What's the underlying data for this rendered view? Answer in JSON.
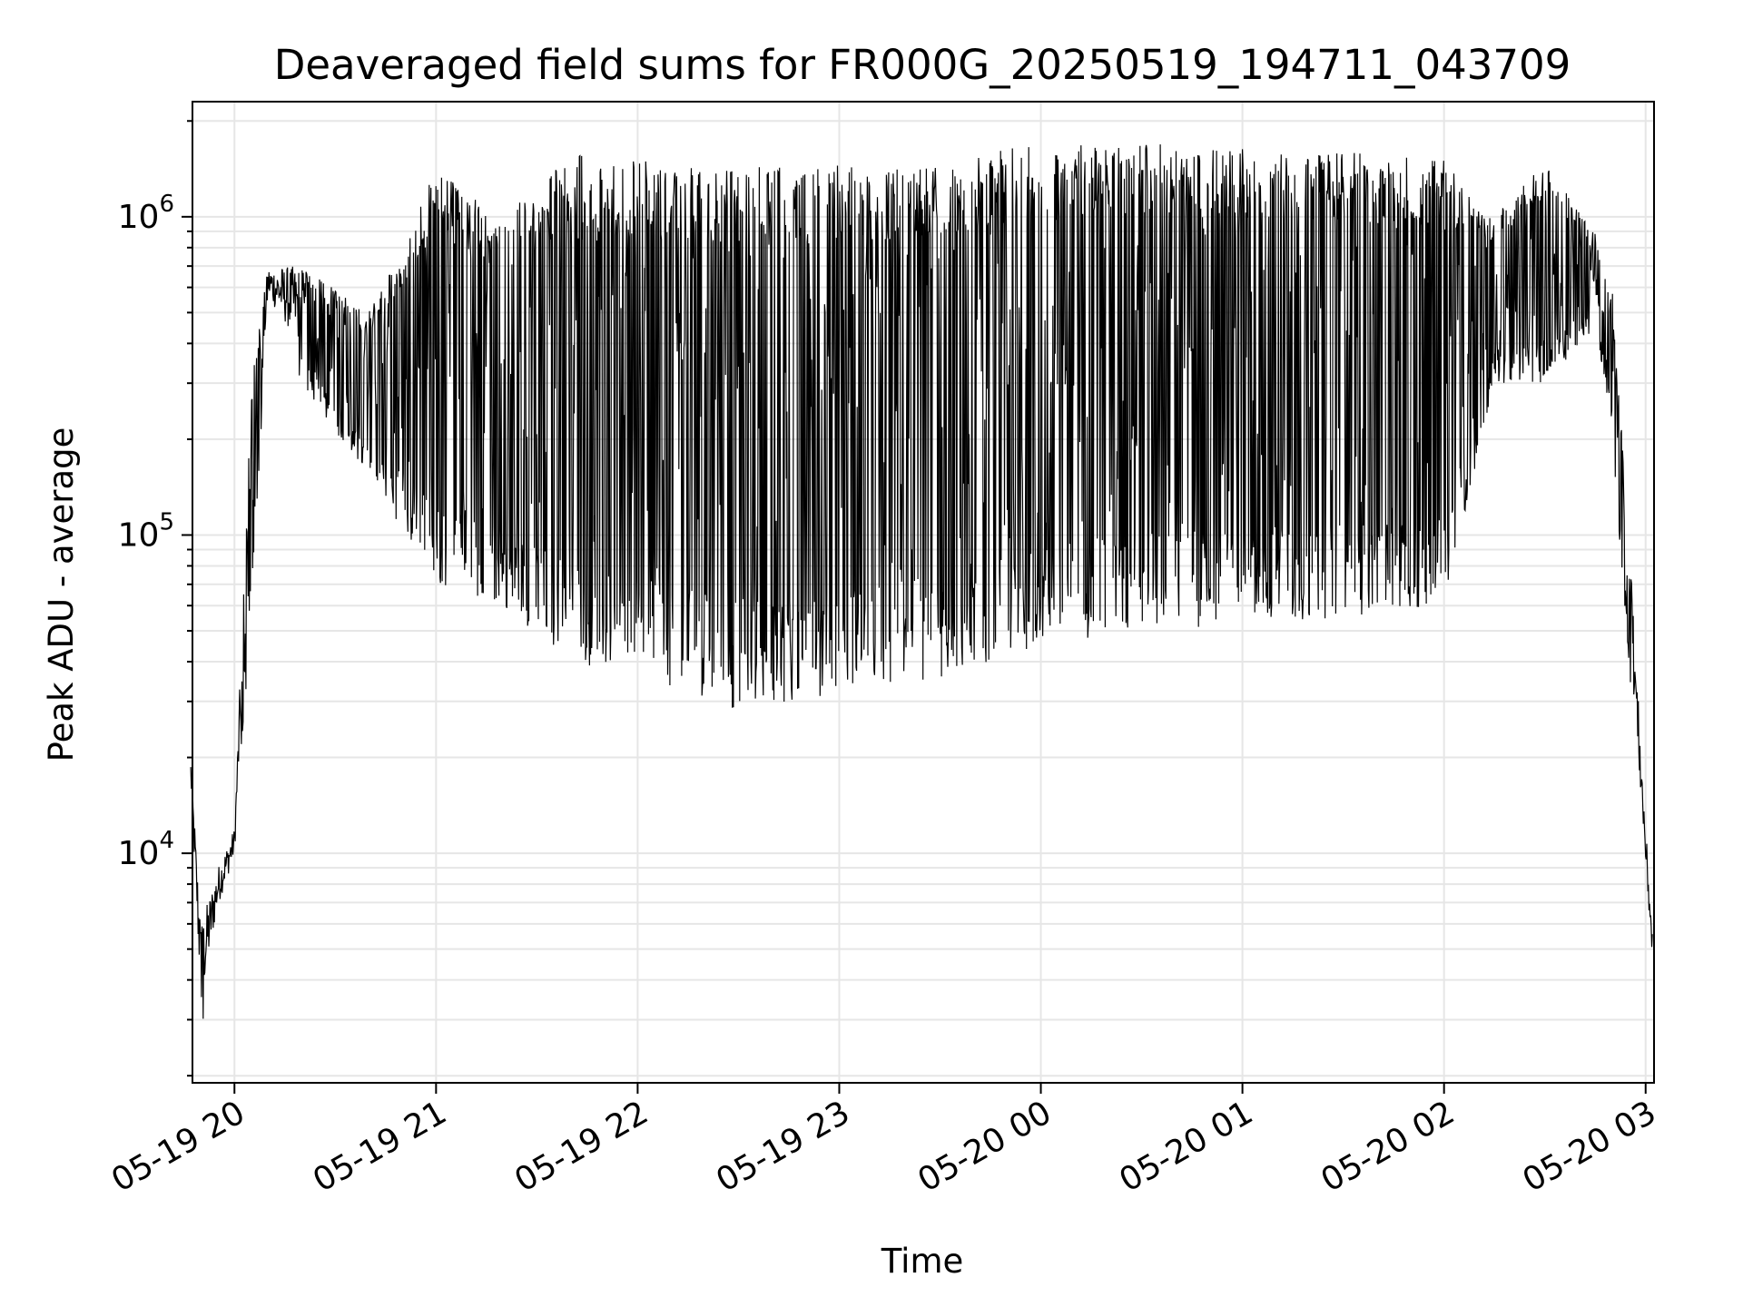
{
  "chart_data": {
    "type": "line",
    "title": "Deaveraged field sums for FR000G_20250519_194711_043709",
    "xlabel": "Time",
    "ylabel": "Peak ADU - average",
    "yscale": "log",
    "ylim": [
      1900,
      2300000
    ],
    "xlim": [
      "2025-05-19 19:47:30",
      "2025-05-20 03:02:30"
    ],
    "grid": true,
    "x_ticks": [
      {
        "label": "05-19 20",
        "time": "2025-05-19 20:00"
      },
      {
        "label": "05-19 21",
        "time": "2025-05-19 21:00"
      },
      {
        "label": "05-19 22",
        "time": "2025-05-19 22:00"
      },
      {
        "label": "05-19 23",
        "time": "2025-05-19 23:00"
      },
      {
        "label": "05-20 00",
        "time": "2025-05-20 00:00"
      },
      {
        "label": "05-20 01",
        "time": "2025-05-20 01:00"
      },
      {
        "label": "05-20 02",
        "time": "2025-05-20 02:00"
      },
      {
        "label": "05-20 03",
        "time": "2025-05-20 03:00"
      }
    ],
    "y_ticks": [
      {
        "base": "10",
        "exp": "4",
        "value": 10000
      },
      {
        "base": "10",
        "exp": "5",
        "value": 100000
      },
      {
        "base": "10",
        "exp": "6",
        "value": 1000000
      }
    ],
    "series_envelope": {
      "description_time_points": [
        "2025-05-19 19:47",
        "2025-05-19 19:50",
        "2025-05-19 19:55",
        "2025-05-19 20:00",
        "2025-05-19 20:05",
        "2025-05-19 20:10",
        "2025-05-19 20:20",
        "2025-05-19 20:40",
        "2025-05-19 21:00",
        "2025-05-19 21:20",
        "2025-05-19 21:40",
        "2025-05-19 22:00",
        "2025-05-19 22:30",
        "2025-05-19 23:00",
        "2025-05-19 23:30",
        "2025-05-20 00:00",
        "2025-05-20 00:30",
        "2025-05-20 01:00",
        "2025-05-20 01:30",
        "2025-05-20 02:00",
        "2025-05-20 02:15",
        "2025-05-20 02:30",
        "2025-05-20 02:45",
        "2025-05-20 02:50",
        "2025-05-20 02:55",
        "2025-05-20 03:00",
        "2025-05-20 03:02"
      ],
      "low": [
        15000,
        2500,
        6000,
        9000,
        60000,
        500000,
        300000,
        150000,
        70000,
        60000,
        40000,
        35000,
        28000,
        32000,
        35000,
        45000,
        50000,
        52000,
        55000,
        60000,
        300000,
        300000,
        450000,
        200000,
        40000,
        8000,
        4000
      ],
      "high": [
        20000,
        6000,
        9000,
        12000,
        300000,
        700000,
        700000,
        500000,
        1400000,
        1000000,
        1600000,
        1500000,
        1450000,
        1450000,
        1500000,
        1700000,
        1700000,
        1650000,
        1600000,
        1500000,
        1000000,
        1500000,
        900000,
        600000,
        100000,
        12000,
        6000
      ]
    }
  }
}
